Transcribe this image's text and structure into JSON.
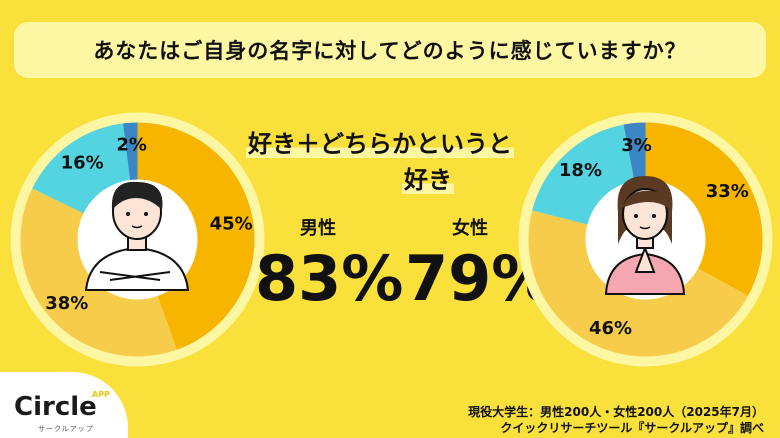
{
  "title": "あなたはご自身の名字に対してどのように感じていますか？",
  "headline": {
    "line1": "好き＋どちらかというと",
    "line2": "好き"
  },
  "male": {
    "label": "男性",
    "total_like": "83%"
  },
  "female": {
    "label": "女性",
    "total_like": "79%"
  },
  "colors": {
    "background": "#f9e03a",
    "title_bg": "#fdf6a3",
    "like": "#f7b500",
    "somewhat_like": "#f6cc4a",
    "somewhat_dislike": "#54d4e0",
    "dislike": "#3b86c4"
  },
  "chart_data": [
    {
      "type": "pie",
      "name": "男性",
      "values": [
        45,
        38,
        16,
        2
      ],
      "labels": [
        "45%",
        "38%",
        "16%",
        "2%"
      ]
    },
    {
      "type": "pie",
      "name": "女性",
      "values": [
        33,
        46,
        18,
        3
      ],
      "labels": [
        "33%",
        "46%",
        "18%",
        "3%"
      ]
    }
  ],
  "logo": {
    "name": "Circle",
    "app": "APP",
    "sub": "サークルアップ"
  },
  "source": {
    "line1": "現役大学生：男性200人・女性200人（2025年7月）",
    "line2": "クイックリサーチツール『サークルアップ』調べ"
  }
}
